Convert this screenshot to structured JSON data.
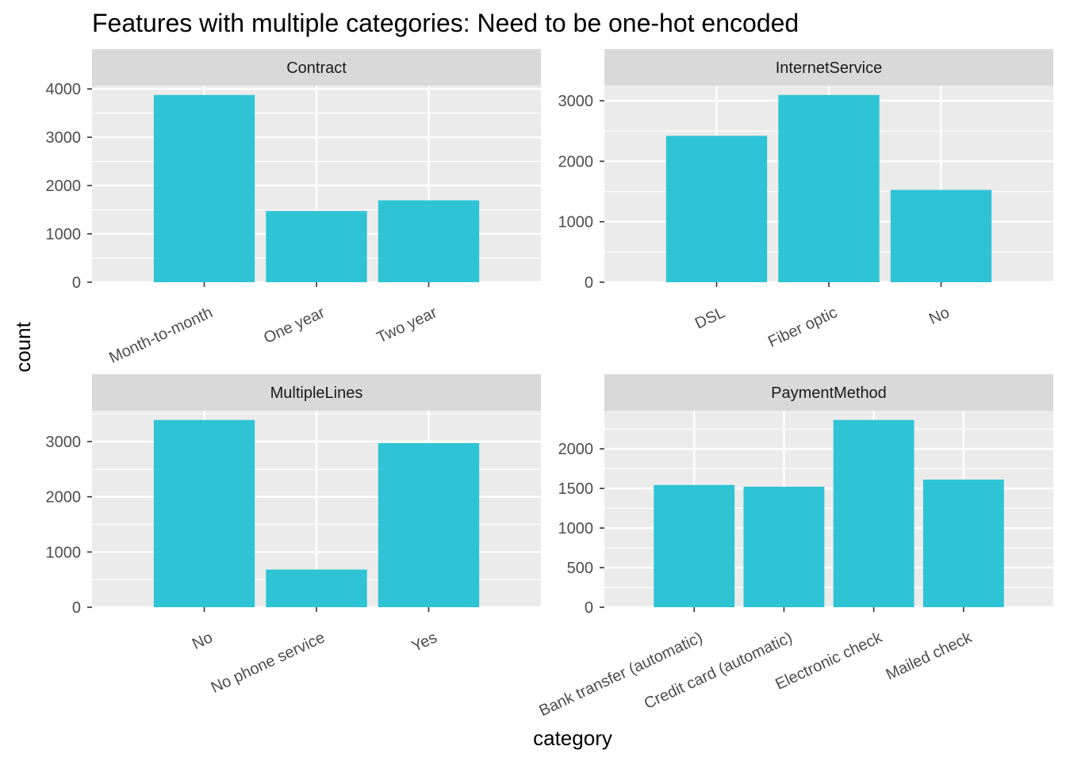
{
  "chart_data": {
    "type": "bar",
    "title": "Features with multiple categories: Need to be one-hot encoded",
    "xlabel": "category",
    "ylabel": "count",
    "bar_color": "#2EC4D6",
    "panel_background": "#EBEBEB",
    "strip_background": "#D9D9D9",
    "grid_color": "#FFFFFF",
    "grid": true,
    "legend": "none",
    "facets": [
      {
        "name": "Contract",
        "categories": [
          "Month-to-month",
          "One year",
          "Two year"
        ],
        "values": [
          3875,
          1473,
          1695
        ],
        "ylim": [
          0,
          4069
        ],
        "yticks": [
          0,
          1000,
          2000,
          3000,
          4000
        ]
      },
      {
        "name": "InternetService",
        "categories": [
          "DSL",
          "Fiber optic",
          "No"
        ],
        "values": [
          2421,
          3096,
          1526
        ],
        "ylim": [
          0,
          3251
        ],
        "yticks": [
          0,
          1000,
          2000,
          3000
        ]
      },
      {
        "name": "MultipleLines",
        "categories": [
          "No",
          "No phone service",
          "Yes"
        ],
        "values": [
          3390,
          682,
          2971
        ],
        "ylim": [
          0,
          3560
        ],
        "yticks": [
          0,
          1000,
          2000,
          3000
        ]
      },
      {
        "name": "PaymentMethod",
        "categories": [
          "Bank transfer (automatic)",
          "Credit card (automatic)",
          "Electronic check",
          "Mailed check"
        ],
        "values": [
          1544,
          1522,
          2365,
          1612
        ],
        "ylim": [
          0,
          2483
        ],
        "yticks": [
          0,
          500,
          1000,
          1500,
          2000
        ]
      }
    ]
  }
}
